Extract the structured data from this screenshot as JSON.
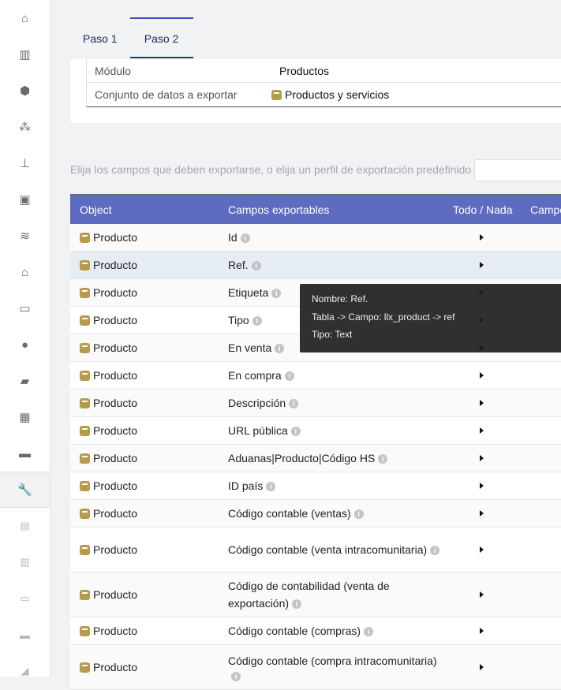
{
  "sidebar": {
    "items": [
      {
        "icon": "home-icon",
        "glyph": "⌂"
      },
      {
        "icon": "building-icon",
        "glyph": "▥"
      },
      {
        "icon": "cube-icon",
        "glyph": "⬢"
      },
      {
        "icon": "cubes-icon",
        "glyph": "⁂"
      },
      {
        "icon": "sitemap-icon",
        "glyph": "⊥"
      },
      {
        "icon": "briefcase-icon",
        "glyph": "▣"
      },
      {
        "icon": "coins-icon",
        "glyph": "≋"
      },
      {
        "icon": "bank-icon",
        "glyph": "⌂"
      },
      {
        "icon": "money-icon",
        "glyph": "▭"
      },
      {
        "icon": "user-tie-icon",
        "glyph": "●"
      },
      {
        "icon": "folder-open-icon",
        "glyph": "▰"
      },
      {
        "icon": "calendar-icon",
        "glyph": "▦"
      },
      {
        "icon": "ticket-icon",
        "glyph": "▬"
      },
      {
        "icon": "wrench-icon",
        "glyph": "🔧",
        "active": true
      },
      {
        "icon": "chart-icon",
        "glyph": "▤",
        "faded": true
      },
      {
        "icon": "barcode-icon",
        "glyph": "▥",
        "faded": true
      },
      {
        "icon": "car-icon",
        "glyph": "▭",
        "faded": true
      },
      {
        "icon": "monitor-icon",
        "glyph": "▬",
        "faded": true
      },
      {
        "icon": "paper-plane-icon",
        "glyph": "◢",
        "faded": true
      }
    ]
  },
  "tabs": [
    {
      "label": "Paso 1"
    },
    {
      "label": "Paso 2",
      "active": true
    }
  ],
  "info": {
    "module_label": "Módulo",
    "module_value": "Productos",
    "dataset_label": "Conjunto de datos a exportar",
    "dataset_value": "Productos y servicios"
  },
  "hint": "Elija los campos que deben exportarse, o elija un perfil de exportación predefinido",
  "table": {
    "headers": [
      "Object",
      "Campos exportables",
      "Todo / Nada",
      "Campo"
    ],
    "rows": [
      {
        "object": "Producto",
        "field": "Id"
      },
      {
        "object": "Producto",
        "field": "Ref.",
        "highlight": true
      },
      {
        "object": "Producto",
        "field": "Etiqueta"
      },
      {
        "object": "Producto",
        "field": "Tipo"
      },
      {
        "object": "Producto",
        "field": "En venta"
      },
      {
        "object": "Producto",
        "field": "En compra"
      },
      {
        "object": "Producto",
        "field": "Descripción"
      },
      {
        "object": "Producto",
        "field": "URL pública"
      },
      {
        "object": "Producto",
        "field": "Aduanas|Producto|Código HS"
      },
      {
        "object": "Producto",
        "field": "ID país"
      },
      {
        "object": "Producto",
        "field": "Código contable (ventas)"
      },
      {
        "object": "Producto",
        "field": "Código contable (venta intracomunitaria)",
        "tall": true
      },
      {
        "object": "Producto",
        "field": "Código de contabilidad (venta de exportación)",
        "tall": true
      },
      {
        "object": "Producto",
        "field": "Código contable (compras)"
      },
      {
        "object": "Producto",
        "field": "Código contable (compra intracomunitaria)",
        "tall": true
      }
    ]
  },
  "tooltip": {
    "name": "Nombre: Ref.",
    "table_field": "Tabla -> Campo: llx_product -> ref",
    "type": "Tipo: Text"
  },
  "colors": {
    "header": "#5d6bc0",
    "product_icon": "#b59b4a"
  }
}
